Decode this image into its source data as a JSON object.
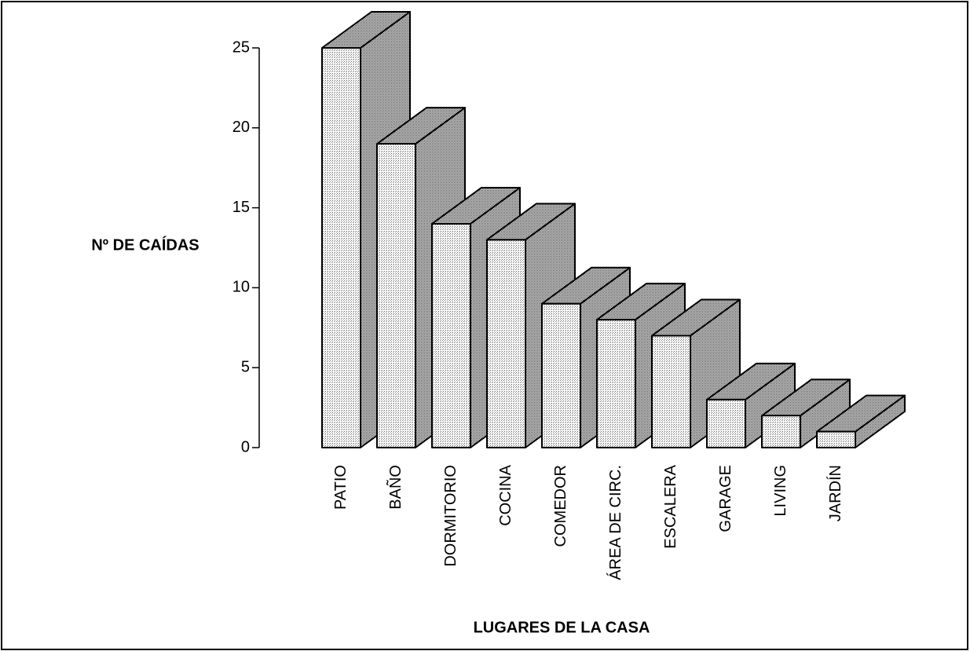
{
  "chart_data": {
    "type": "bar3d",
    "ylabel": "Nº DE CAÍDAS",
    "xlabel": "LUGARES DE LA CASA",
    "categories": [
      "PATIO",
      "BAÑO",
      "DORMITORIO",
      "COCINA",
      "COMEDOR",
      "ÁREA DE CIRC.",
      "ESCALERA",
      "GARAGE",
      "LIVING",
      "JARDÍN"
    ],
    "values": [
      25,
      19,
      14,
      13,
      9,
      8,
      7,
      3,
      2,
      1
    ],
    "color": "#d4d4d4",
    "ylim": [
      0,
      25
    ],
    "yticks": [
      0,
      5,
      10,
      15,
      20,
      25
    ],
    "grid": false
  }
}
